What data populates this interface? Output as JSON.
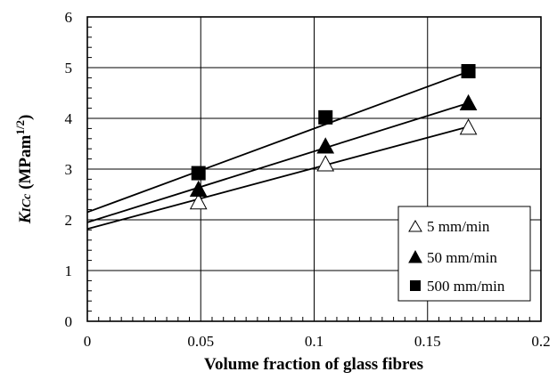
{
  "chart_data": {
    "type": "scatter",
    "xlabel": "Volume fraction of glass fibres",
    "ylabel": {
      "k": "K",
      "sub": "ICc",
      "unit": " (MPam",
      "sup": "1/2",
      "close": ")"
    },
    "xlim": [
      0,
      0.2
    ],
    "ylim": [
      0,
      6
    ],
    "x_ticks": [
      "0",
      "0.05",
      "0.1",
      "0.15",
      "0.2"
    ],
    "y_ticks": [
      "0",
      "1",
      "2",
      "3",
      "4",
      "5",
      "6"
    ],
    "grid": true,
    "legend_position": "bottom-right",
    "series": [
      {
        "name": "5 mm/min",
        "marker": "triangle-open",
        "x": [
          0.049,
          0.105,
          0.168
        ],
        "y": [
          2.35,
          3.1,
          3.82
        ],
        "fit": {
          "intercept": 1.82,
          "slope": 12.0
        }
      },
      {
        "name": "50 mm/min",
        "marker": "triangle-filled",
        "x": [
          0.049,
          0.105,
          0.168
        ],
        "y": [
          2.6,
          3.45,
          4.3
        ],
        "fit": {
          "intercept": 1.95,
          "slope": 14.0
        }
      },
      {
        "name": "500 mm/min",
        "marker": "square-filled",
        "x": [
          0.049,
          0.105,
          0.168
        ],
        "y": [
          2.92,
          4.02,
          4.93
        ],
        "fit": {
          "intercept": 2.15,
          "slope": 16.5
        }
      }
    ]
  }
}
